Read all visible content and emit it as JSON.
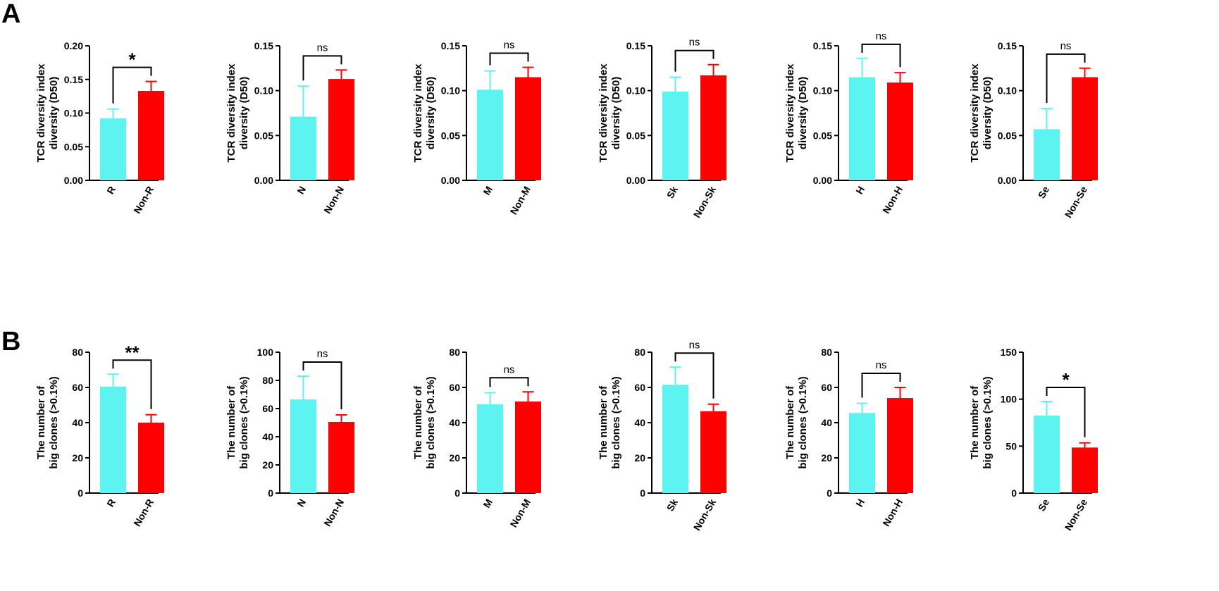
{
  "panel_labels": [
    "A",
    "B"
  ],
  "colors": {
    "group": "#5cf3f0",
    "non_group": "#ff0000",
    "axis": "#000000"
  },
  "chart_data": [
    {
      "type": "bar",
      "panel": "A",
      "title": "",
      "ylabel": [
        "TCR diversity index",
        "diversity (D50)"
      ],
      "ylim": [
        0,
        0.2
      ],
      "yticks": [
        "0.00",
        "0.05",
        "0.10",
        "0.15",
        "0.20"
      ],
      "categories": [
        "R",
        "Non-R"
      ],
      "values": [
        0.092,
        0.133
      ],
      "errors": [
        0.014,
        0.014
      ],
      "significance": "*"
    },
    {
      "type": "bar",
      "panel": "A",
      "title": "",
      "ylabel": [
        "TCR diversity index",
        "diversity (D50)"
      ],
      "ylim": [
        0,
        0.15
      ],
      "yticks": [
        "0.00",
        "0.05",
        "0.10",
        "0.15"
      ],
      "categories": [
        "N",
        "Non-N"
      ],
      "values": [
        0.071,
        0.113
      ],
      "errors": [
        0.034,
        0.01
      ],
      "significance": "ns"
    },
    {
      "type": "bar",
      "panel": "A",
      "title": "",
      "ylabel": [
        "TCR diversity index",
        "diversity (D50)"
      ],
      "ylim": [
        0,
        0.15
      ],
      "yticks": [
        "0.00",
        "0.05",
        "0.10",
        "0.15"
      ],
      "categories": [
        "M",
        "Non-M"
      ],
      "values": [
        0.101,
        0.115
      ],
      "errors": [
        0.021,
        0.011
      ],
      "significance": "ns"
    },
    {
      "type": "bar",
      "panel": "A",
      "title": "",
      "ylabel": [
        "TCR diversity index",
        "diversity (D50)"
      ],
      "ylim": [
        0,
        0.15
      ],
      "yticks": [
        "0.00",
        "0.05",
        "0.10",
        "0.15"
      ],
      "categories": [
        "Sk",
        "Non-Sk"
      ],
      "values": [
        0.099,
        0.117
      ],
      "errors": [
        0.016,
        0.012
      ],
      "significance": "ns"
    },
    {
      "type": "bar",
      "panel": "A",
      "title": "",
      "ylabel": [
        "TCR diversity index",
        "diversity (D50)"
      ],
      "ylim": [
        0,
        0.15
      ],
      "yticks": [
        "0.00",
        "0.05",
        "0.10",
        "0.15"
      ],
      "categories": [
        "H",
        "Non-H"
      ],
      "values": [
        0.115,
        0.109
      ],
      "errors": [
        0.021,
        0.011
      ],
      "significance": "ns"
    },
    {
      "type": "bar",
      "panel": "A",
      "title": "",
      "ylabel": [
        "TCR diversity index",
        "diversity (D50)"
      ],
      "ylim": [
        0,
        0.15
      ],
      "yticks": [
        "0.00",
        "0.05",
        "0.10",
        "0.15"
      ],
      "categories": [
        "Se",
        "Non-Se"
      ],
      "values": [
        0.057,
        0.115
      ],
      "errors": [
        0.023,
        0.01
      ],
      "significance": "ns"
    },
    {
      "type": "bar",
      "panel": "B",
      "title": "",
      "ylabel": [
        "The number of",
        "big clones (>0.1%)"
      ],
      "ylim": [
        0,
        80
      ],
      "yticks": [
        "0",
        "20",
        "40",
        "60",
        "80"
      ],
      "categories": [
        "R",
        "Non-R"
      ],
      "values": [
        60.5,
        40
      ],
      "errors": [
        7,
        4.5
      ],
      "significance": "**"
    },
    {
      "type": "bar",
      "panel": "B",
      "title": "",
      "ylabel": [
        "The number of",
        "big clones (>0.1%)"
      ],
      "ylim": [
        0,
        100
      ],
      "yticks": [
        "0",
        "20",
        "40",
        "60",
        "80",
        "100"
      ],
      "categories": [
        "N",
        "Non-N"
      ],
      "values": [
        66.5,
        50.5
      ],
      "errors": [
        16.5,
        5
      ],
      "significance": "ns"
    },
    {
      "type": "bar",
      "panel": "B",
      "title": "",
      "ylabel": [
        "The number of",
        "big clones (>0.1%)"
      ],
      "ylim": [
        0,
        80
      ],
      "yticks": [
        "0",
        "20",
        "40",
        "60",
        "80"
      ],
      "categories": [
        "M",
        "Non-M"
      ],
      "values": [
        50.5,
        52
      ],
      "errors": [
        6.5,
        5.5
      ],
      "significance": "ns"
    },
    {
      "type": "bar",
      "panel": "B",
      "title": "",
      "ylabel": [
        "The number of",
        "big clones (>0.1%)"
      ],
      "ylim": [
        0,
        80
      ],
      "yticks": [
        "0",
        "20",
        "40",
        "60",
        "80"
      ],
      "categories": [
        "Sk",
        "Non-Sk"
      ],
      "values": [
        61.5,
        46.5
      ],
      "errors": [
        10,
        4
      ],
      "significance": "ns"
    },
    {
      "type": "bar",
      "panel": "B",
      "title": "",
      "ylabel": [
        "The number of",
        "big clones (>0.1%)"
      ],
      "ylim": [
        0,
        80
      ],
      "yticks": [
        "0",
        "20",
        "40",
        "60",
        "80"
      ],
      "categories": [
        "H",
        "Non-H"
      ],
      "values": [
        45.5,
        54
      ],
      "errors": [
        5.5,
        6
      ],
      "significance": "ns"
    },
    {
      "type": "bar",
      "panel": "B",
      "title": "",
      "ylabel": [
        "The number of",
        "big clones (>0.1%)"
      ],
      "ylim": [
        0,
        150
      ],
      "yticks": [
        "0",
        "50",
        "100",
        "150"
      ],
      "categories": [
        "Se",
        "Non-Se"
      ],
      "values": [
        82.5,
        48.5
      ],
      "errors": [
        15,
        5
      ],
      "significance": "*"
    }
  ]
}
